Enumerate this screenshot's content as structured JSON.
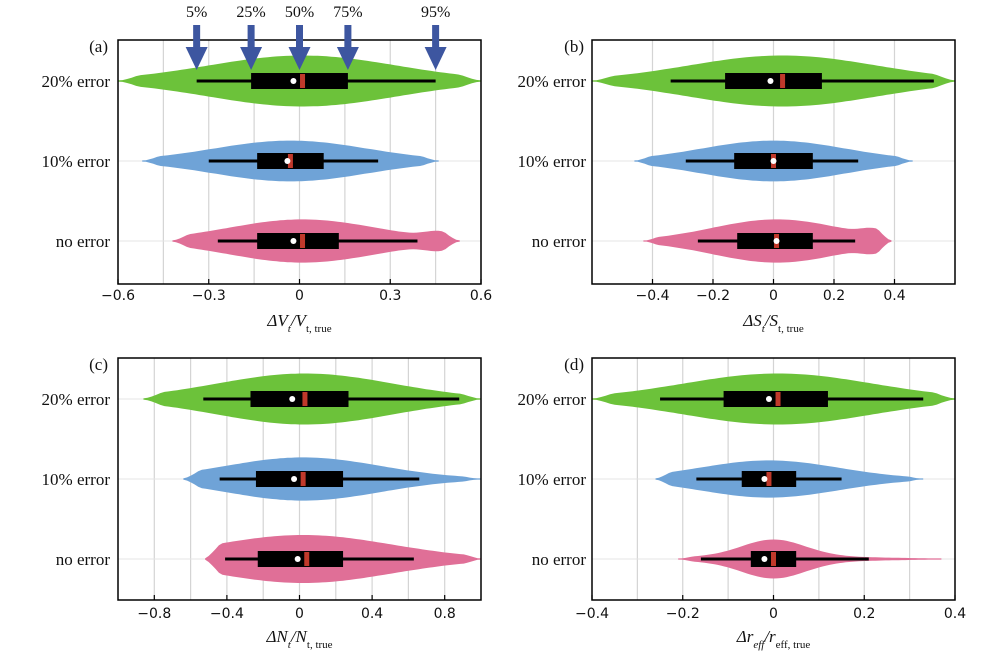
{
  "chart_data": [
    {
      "type": "violin",
      "panel_label": "(a)",
      "xlabel_main": "ΔV",
      "xlabel_sub1": "t",
      "xlabel_mid": "/V",
      "xlabel_sub2": "t, true",
      "xlim": [
        -0.6,
        0.6
      ],
      "xticks": [
        "−0.6",
        "−0.3",
        "0",
        "0.3",
        "0.6"
      ],
      "tick_values": [
        -0.6,
        -0.3,
        0,
        0.3,
        0.6
      ],
      "grid_values": [
        -0.6,
        -0.45,
        -0.3,
        -0.15,
        0,
        0.15,
        0.3,
        0.45,
        0.6
      ],
      "categories": [
        "20% error",
        "10% error",
        "no error"
      ],
      "series": [
        {
          "color": "#6cc23a",
          "whisker": [
            -0.34,
            0.45
          ],
          "box": [
            -0.16,
            0.16
          ],
          "mean": -0.02,
          "median": 0.01,
          "min": -0.6,
          "max": 0.6,
          "width": 0.85,
          "shape": "symmetric"
        },
        {
          "color": "#6fa3d7",
          "whisker": [
            -0.3,
            0.26
          ],
          "box": [
            -0.14,
            0.08
          ],
          "mean": -0.04,
          "median": -0.03,
          "min": -0.52,
          "max": 0.46,
          "width": 0.68,
          "shape": "symmetric"
        },
        {
          "color": "#e06f97",
          "whisker": [
            -0.27,
            0.39
          ],
          "box": [
            -0.14,
            0.13
          ],
          "mean": -0.02,
          "median": 0.01,
          "min": -0.42,
          "max": 0.53,
          "width": 0.72,
          "shape": "tail-bulge"
        }
      ],
      "quantile_annotations": [
        {
          "label": "5%",
          "value": -0.34
        },
        {
          "label": "25%",
          "value": -0.16
        },
        {
          "label": "50%",
          "value": 0.0
        },
        {
          "label": "75%",
          "value": 0.16
        },
        {
          "label": "95%",
          "value": 0.45
        }
      ]
    },
    {
      "type": "violin",
      "panel_label": "(b)",
      "xlabel_main": "ΔS",
      "xlabel_sub1": "t",
      "xlabel_mid": "/S",
      "xlabel_sub2": "t, true",
      "xlim": [
        -0.6,
        0.6
      ],
      "xticks": [
        "−0.4",
        "−0.2",
        "0",
        "0.2",
        "0.4"
      ],
      "tick_values": [
        -0.4,
        -0.2,
        0,
        0.2,
        0.4
      ],
      "grid_values": [
        -0.4,
        -0.2,
        0,
        0.2,
        0.4
      ],
      "categories": [
        "20% error",
        "10% error",
        "no error"
      ],
      "series": [
        {
          "color": "#6cc23a",
          "whisker": [
            -0.34,
            0.53
          ],
          "box": [
            -0.16,
            0.16
          ],
          "mean": -0.01,
          "median": 0.03,
          "min": -0.6,
          "max": 0.6,
          "width": 0.85,
          "shape": "symmetric"
        },
        {
          "color": "#6fa3d7",
          "whisker": [
            -0.29,
            0.28
          ],
          "box": [
            -0.13,
            0.13
          ],
          "mean": 0.0,
          "median": 0.0,
          "min": -0.46,
          "max": 0.46,
          "width": 0.68,
          "shape": "symmetric"
        },
        {
          "color": "#e06f97",
          "whisker": [
            -0.25,
            0.27
          ],
          "box": [
            -0.12,
            0.13
          ],
          "mean": 0.01,
          "median": 0.01,
          "min": -0.43,
          "max": 0.39,
          "width": 0.72,
          "shape": "tail-bulge"
        }
      ]
    },
    {
      "type": "violin",
      "panel_label": "(c)",
      "xlabel_main": "ΔN",
      "xlabel_sub1": "t",
      "xlabel_mid": "/N",
      "xlabel_sub2": "t, true",
      "xlim": [
        -1.0,
        1.0
      ],
      "xticks": [
        "−0.8",
        "−0.4",
        "0",
        "0.4",
        "0.8"
      ],
      "tick_values": [
        -0.8,
        -0.4,
        0,
        0.4,
        0.8
      ],
      "grid_values": [
        -0.8,
        -0.6,
        -0.4,
        -0.2,
        0,
        0.2,
        0.4,
        0.6,
        0.8
      ],
      "categories": [
        "20% error",
        "10% error",
        "no error"
      ],
      "series": [
        {
          "color": "#6cc23a",
          "whisker": [
            -0.53,
            0.88
          ],
          "box": [
            -0.27,
            0.27
          ],
          "mean": -0.04,
          "median": 0.03,
          "min": -0.86,
          "max": 1.0,
          "width": 0.85,
          "shape": "symmetric"
        },
        {
          "color": "#6fa3d7",
          "whisker": [
            -0.44,
            0.66
          ],
          "box": [
            -0.24,
            0.24
          ],
          "mean": -0.03,
          "median": 0.02,
          "min": -0.64,
          "max": 1.0,
          "width": 0.72,
          "shape": "symmetric"
        },
        {
          "color": "#e06f97",
          "whisker": [
            -0.41,
            0.63
          ],
          "box": [
            -0.23,
            0.24
          ],
          "mean": -0.01,
          "median": 0.04,
          "min": -0.52,
          "max": 1.0,
          "width": 0.8,
          "shape": "left-heavy"
        }
      ]
    },
    {
      "type": "violin",
      "panel_label": "(d)",
      "xlabel_main": "Δr",
      "xlabel_sub1": "eff",
      "xlabel_mid": "/r",
      "xlabel_sub2": "eff, true",
      "xlim": [
        -0.4,
        0.4
      ],
      "xticks": [
        "−0.4",
        "−0.2",
        "0",
        "0.2",
        "0.4"
      ],
      "tick_values": [
        -0.4,
        -0.2,
        0,
        0.2,
        0.4
      ],
      "grid_values": [
        -0.3,
        -0.2,
        -0.1,
        0,
        0.1,
        0.2,
        0.3
      ],
      "categories": [
        "20% error",
        "10% error",
        "no error"
      ],
      "series": [
        {
          "color": "#6cc23a",
          "whisker": [
            -0.25,
            0.33
          ],
          "box": [
            -0.11,
            0.12
          ],
          "mean": -0.01,
          "median": 0.01,
          "min": -0.4,
          "max": 0.4,
          "width": 0.85,
          "shape": "symmetric"
        },
        {
          "color": "#6fa3d7",
          "whisker": [
            -0.17,
            0.15
          ],
          "box": [
            -0.07,
            0.05
          ],
          "mean": -0.02,
          "median": -0.01,
          "min": -0.26,
          "max": 0.33,
          "width": 0.62,
          "shape": "symmetric"
        },
        {
          "color": "#e06f97",
          "whisker": [
            -0.16,
            0.21
          ],
          "box": [
            -0.05,
            0.05
          ],
          "mean": -0.02,
          "median": 0.0,
          "min": -0.21,
          "max": 0.37,
          "width": 0.65,
          "shape": "peaked"
        }
      ]
    }
  ]
}
